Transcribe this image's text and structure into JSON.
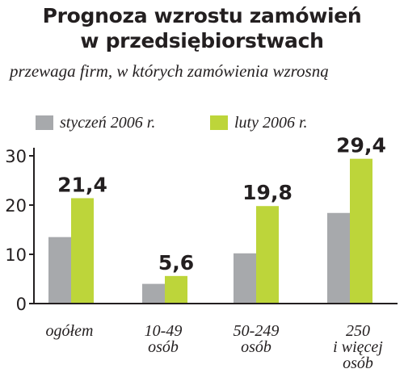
{
  "colors": {
    "jan": "#a7a9ac",
    "feb": "#bdd53a",
    "text": "#231f20"
  },
  "chart_data": {
    "type": "bar",
    "title": [
      "Prognoza wzrostu zamówień",
      "w przedsiębiorstwach"
    ],
    "subtitle": "przewaga firm, w których zamówienia wzrosną",
    "categories": [
      [
        "ogółem"
      ],
      [
        "10-49",
        "osób"
      ],
      [
        "50-249",
        "osób"
      ],
      [
        "250",
        "i więcej",
        "osób"
      ]
    ],
    "series": [
      {
        "name": "styczeń 2006 r.",
        "values": [
          13.5,
          4.0,
          10.2,
          18.4
        ]
      },
      {
        "name": "luty 2006 r.",
        "values": [
          21.4,
          5.6,
          19.8,
          29.4
        ],
        "labels": [
          "21,4",
          "5,6",
          "19,8",
          "29,4"
        ]
      }
    ],
    "yticks": [
      "0",
      "10",
      "20",
      "30"
    ],
    "ylim": [
      0,
      30
    ],
    "grid": false,
    "legend": "top"
  }
}
